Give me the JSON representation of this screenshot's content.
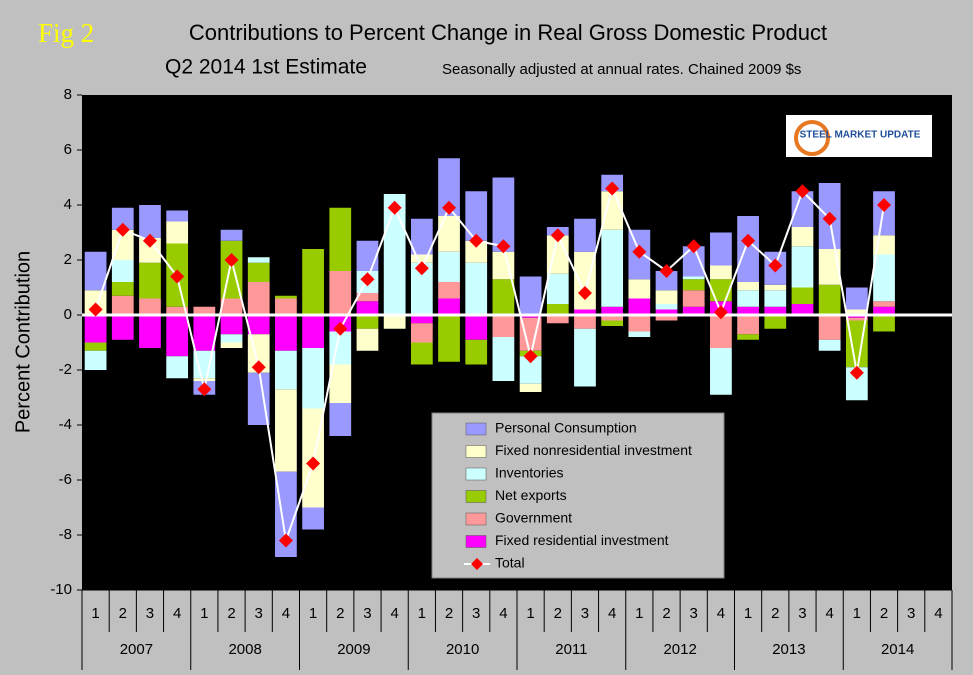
{
  "chart_data": {
    "type": "stacked_bar",
    "figure_label": "Fig 2",
    "title": "Contributions to Percent Change in Real Gross Domestic Product",
    "subtitle": "Q2 2014 1st Estimate",
    "note": "Seasonally adjusted at annual rates. Chained 2009 $s",
    "logo": "STEEL MARKET UPDATE",
    "y_label": "Percent Contribution",
    "ylim": [
      -10,
      8
    ],
    "yticks": [
      -10,
      -8,
      -6,
      -4,
      -2,
      0,
      2,
      4,
      6,
      8
    ],
    "categories": [
      "1",
      "2",
      "3",
      "4",
      "1",
      "2",
      "3",
      "4",
      "1",
      "2",
      "3",
      "4",
      "1",
      "2",
      "3",
      "4",
      "1",
      "2",
      "3",
      "4",
      "1",
      "2",
      "3",
      "4",
      "1",
      "2",
      "3",
      "4",
      "1",
      "2",
      "3",
      "4"
    ],
    "years": [
      "2007",
      "2008",
      "2009",
      "2010",
      "2011",
      "2012",
      "2013",
      "2014"
    ],
    "series": [
      {
        "name": "Personal Consumption",
        "color": "#9999ff",
        "values": [
          1.4,
          0.8,
          1.2,
          0.4,
          -0.5,
          0.4,
          -1.9,
          -3.1,
          -0.8,
          -1.2,
          1.1,
          0,
          1.3,
          2.1,
          1.8,
          2.7,
          1.4,
          0.3,
          1.2,
          0.6,
          1.8,
          0.7,
          1.1,
          1.2,
          2.4,
          1.2,
          1.3,
          2.4,
          0.8,
          1.6,
          null,
          null
        ]
      },
      {
        "name": "Fixed nonresidential investment",
        "color": "#ffffcc",
        "values": [
          0.9,
          1.1,
          0.9,
          0.8,
          -0.1,
          -0.2,
          -1.4,
          -3.0,
          -3.6,
          -1.4,
          -0.8,
          -0.5,
          0.3,
          1.3,
          0.8,
          1.0,
          -0.3,
          1.4,
          2.1,
          1.4,
          0.7,
          0.5,
          0,
          0.5,
          0.3,
          0.2,
          0.7,
          1.3,
          0.2,
          0.7,
          null,
          null
        ]
      },
      {
        "name": "Inventories",
        "color": "#ccffff",
        "values": [
          -0.7,
          0.8,
          0,
          -0.8,
          -1.0,
          -0.3,
          0.2,
          -1.4,
          -2.2,
          -1.2,
          0.8,
          4.4,
          1.9,
          1.1,
          1.9,
          -1.6,
          -1.0,
          1.1,
          -2.1,
          2.8,
          -0.2,
          0.2,
          0.1,
          -1.7,
          0.6,
          0.6,
          1.5,
          -0.4,
          -1.2,
          1.7,
          null,
          null
        ]
      },
      {
        "name": "Net exports",
        "color": "#99cc00",
        "values": [
          -0.3,
          0.5,
          1.3,
          2.3,
          0,
          2.1,
          0.7,
          0.1,
          2.4,
          2.3,
          -0.5,
          0,
          -0.8,
          -1.7,
          -0.9,
          1.3,
          -0.2,
          0.4,
          0,
          -0.2,
          0,
          0,
          0.4,
          0.8,
          -0.2,
          -0.5,
          0.6,
          1.1,
          -1.7,
          -0.6,
          null,
          null
        ]
      },
      {
        "name": "Government",
        "color": "#ff9999",
        "values": [
          0,
          0.7,
          0.6,
          0.3,
          0.3,
          0.6,
          1.2,
          0.6,
          0,
          1.6,
          0.3,
          0,
          -0.7,
          0.6,
          0,
          -0.8,
          -1.2,
          -0.3,
          -0.5,
          -0.2,
          -0.6,
          -0.2,
          0.6,
          -1.2,
          -0.7,
          0,
          0,
          -0.9,
          -0.1,
          0.2,
          null,
          null
        ]
      },
      {
        "name": "Fixed residential investment",
        "color": "#ff00ff",
        "values": [
          -1.0,
          -0.9,
          -1.2,
          -1.5,
          -1.3,
          -0.7,
          -0.7,
          -1.3,
          -1.2,
          -0.6,
          0.5,
          0,
          -0.3,
          0.6,
          -0.9,
          0,
          -0.1,
          0,
          0.2,
          0.3,
          0.6,
          0.2,
          0.3,
          0.5,
          0.3,
          0.3,
          0.4,
          0,
          -0.1,
          0.3,
          null,
          null
        ]
      }
    ],
    "total": {
      "name": "Total",
      "color": "#ff0000",
      "line_color": "#ffffff",
      "values": [
        0.2,
        3.1,
        2.7,
        1.4,
        -2.7,
        2.0,
        -1.9,
        -8.2,
        -5.4,
        -0.5,
        1.3,
        3.9,
        1.7,
        3.9,
        2.7,
        2.5,
        -1.5,
        2.9,
        0.8,
        4.6,
        2.3,
        1.6,
        2.5,
        0.1,
        2.7,
        1.8,
        4.5,
        3.5,
        -2.1,
        4.0,
        null,
        null
      ]
    }
  }
}
